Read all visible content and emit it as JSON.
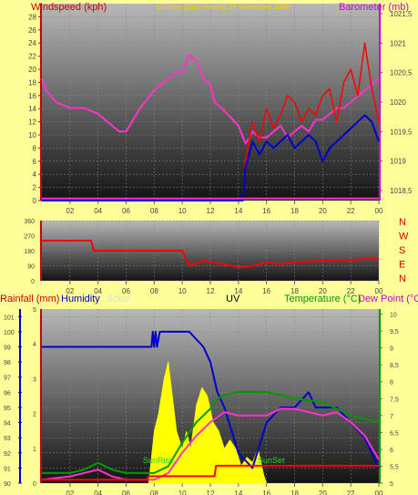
{
  "colors": {
    "background": "#ffff99",
    "red": "#ff0000",
    "blue": "#0000cc",
    "magenta": "#ff33cc",
    "green": "#009900",
    "yellow": "#ffff00",
    "plot_top": "#b8b8b8",
    "plot_bottom": "#141414"
  },
  "chart_data": [
    {
      "id": "wind_pressure",
      "type": "line",
      "title": "24 hour graph ending 27 November 2008",
      "ylabel_left": "Windspeed (kph)",
      "ylabel_right": "Barometer (mb)",
      "x_ticks": [
        "02",
        "04",
        "06",
        "08",
        "10",
        "12",
        "14",
        "16",
        "18",
        "20",
        "22",
        "00"
      ],
      "y_left_ticks": [
        0,
        2,
        4,
        6,
        8,
        10,
        12,
        14,
        16,
        18,
        20,
        22,
        24,
        26,
        28
      ],
      "y_left_range": [
        0,
        30
      ],
      "y_right_ticks": [
        "1018,5",
        "1019",
        "1019,5",
        "1020",
        "1020,5",
        "1021",
        "1021,5"
      ],
      "y_right_range": [
        1018.33,
        1021.67
      ],
      "grid": true,
      "series": [
        {
          "axis": "right",
          "color": "magenta",
          "x": [
            0,
            0.3,
            1,
            2,
            3,
            4,
            4.5,
            5,
            5.5,
            6,
            6.5,
            7,
            8,
            9,
            9.5,
            10,
            10.5,
            11,
            11.5,
            12,
            12.3,
            12.8,
            13.2,
            13.6,
            14,
            14.5,
            14.8,
            15,
            15.5,
            16,
            16.5,
            17,
            17.5,
            18,
            18.5,
            19,
            19.5,
            20,
            20.5,
            21,
            21.5,
            22,
            22.5,
            23,
            23.5,
            24
          ],
          "values": [
            1020.4,
            1020.2,
            1020.0,
            1019.9,
            1019.9,
            1019.8,
            1019.7,
            1019.6,
            1019.5,
            1019.5,
            1019.7,
            1019.9,
            1020.2,
            1020.4,
            1020.5,
            1020.5,
            1020.8,
            1020.7,
            1020.4,
            1020.3,
            1020.0,
            1019.9,
            1019.8,
            1019.7,
            1019.6,
            1019.3,
            1019.4,
            1019.5,
            1019.4,
            1019.4,
            1019.5,
            1019.6,
            1019.4,
            1019.5,
            1019.6,
            1019.5,
            1019.7,
            1019.7,
            1019.8,
            1019.9,
            1019.9,
            1020.0,
            1020.1,
            1020.2,
            1020.3,
            1020.4
          ]
        },
        {
          "axis": "left",
          "color": "red",
          "x": [
            0,
            14.3,
            14.5,
            15,
            15.5,
            16,
            16.5,
            17,
            17.5,
            18,
            18.5,
            19,
            19.5,
            20,
            20.5,
            21,
            21.5,
            22,
            22.5,
            23,
            23.5,
            24
          ],
          "values": [
            0,
            0,
            6,
            12,
            9,
            14,
            11,
            13,
            16,
            15,
            12,
            14,
            13,
            16,
            17,
            12,
            18,
            20,
            16,
            24,
            17,
            12
          ]
        },
        {
          "axis": "left",
          "color": "blue",
          "x": [
            0,
            14.3,
            14.5,
            15,
            15.5,
            16,
            16.5,
            17,
            17.5,
            18,
            18.5,
            19,
            19.5,
            20,
            20.5,
            21,
            21.5,
            22,
            22.5,
            23,
            23.5,
            24
          ],
          "values": [
            0,
            0,
            5,
            9,
            7,
            9,
            8,
            9,
            10,
            8,
            9,
            10,
            9,
            6,
            8,
            9,
            10,
            11,
            12,
            13,
            12,
            9
          ]
        },
        {
          "axis": "left",
          "color": "magenta",
          "x": [
            0,
            24
          ],
          "values": [
            0.3,
            0.3
          ]
        }
      ]
    },
    {
      "id": "wind_direction",
      "type": "line",
      "y_ticks": [
        0,
        90,
        180,
        270,
        360
      ],
      "y_range": [
        0,
        360
      ],
      "compass_labels": [
        "N",
        "W",
        "S",
        "E",
        "N"
      ],
      "series": [
        {
          "color": "red",
          "x": [
            0,
            3.5,
            3.7,
            5,
            7,
            10,
            10.1,
            10.5,
            11.5,
            12,
            13,
            14,
            15,
            16,
            17,
            18,
            20,
            22,
            23,
            24
          ],
          "values": [
            240,
            240,
            180,
            180,
            180,
            180,
            160,
            90,
            120,
            110,
            100,
            80,
            90,
            110,
            100,
            110,
            120,
            125,
            130,
            130
          ]
        }
      ]
    },
    {
      "id": "rain_hum_temp",
      "type": "line",
      "labels": {
        "rainfall": "Rainfall (mm)",
        "humidity": "Humidity",
        "solar": "Solar",
        "uv": "UV",
        "temperature": "Temperature (°C)",
        "dewpoint": "Dew Point (°C)",
        "sunrise": "SunRise",
        "sunset": "SunSet"
      },
      "x_ticks": [
        "02",
        "04",
        "06",
        "08",
        "10",
        "12",
        "14",
        "16",
        "18",
        "20",
        "22",
        "00"
      ],
      "rain_ticks": [
        0,
        1,
        2,
        3,
        4,
        5
      ],
      "rain_range": [
        0,
        5
      ],
      "humidity_ticks": [
        90,
        91,
        92,
        93,
        94,
        95,
        96,
        97,
        98,
        99,
        100,
        101
      ],
      "humidity_range": [
        90,
        101.5
      ],
      "temp_ticks": [
        "5",
        "5,5",
        "6",
        "6,5",
        "7",
        "7,5",
        "8",
        "8,5",
        "9",
        "9,5",
        "10"
      ],
      "temp_range": [
        5,
        10.15
      ],
      "series": [
        {
          "axis": "humidity",
          "color": "blue",
          "x": [
            0,
            7.8,
            7.9,
            8.0,
            8.1,
            8.2,
            8.4,
            8.5,
            10.5,
            11.5,
            12,
            12.5,
            13,
            14,
            15,
            16,
            17,
            18,
            19,
            19.5,
            20,
            21,
            22,
            23,
            23.5,
            24
          ],
          "values": [
            99,
            99,
            100,
            99,
            100,
            99,
            100,
            100,
            100,
            99,
            98,
            96,
            95,
            92,
            91,
            94,
            95,
            95,
            96,
            95,
            95,
            95,
            94,
            93,
            92,
            91
          ]
        },
        {
          "axis": "temp",
          "color": "green",
          "x": [
            0,
            2,
            3,
            4,
            5,
            6,
            7,
            8,
            9,
            10,
            11,
            12,
            12.5,
            13,
            14,
            16,
            18,
            20,
            22,
            24
          ],
          "values": [
            5.3,
            5.3,
            5.4,
            5.6,
            5.4,
            5.3,
            5.3,
            5.3,
            5.5,
            6.2,
            6.8,
            7.2,
            7.5,
            7.6,
            7.7,
            7.7,
            7.5,
            7.4,
            7.0,
            6.8
          ]
        },
        {
          "axis": "temp",
          "color": "magenta",
          "x": [
            0,
            2,
            4,
            5,
            6,
            7,
            8,
            9,
            10,
            11,
            12,
            13,
            14,
            16,
            17,
            18,
            20,
            21,
            22,
            23,
            24
          ],
          "values": [
            5.1,
            5.2,
            5.4,
            5.2,
            5.1,
            5.1,
            5.1,
            5.3,
            5.9,
            6.4,
            6.8,
            7.1,
            7.0,
            7.0,
            7.2,
            7.2,
            7.0,
            7.1,
            6.8,
            6.4,
            5.7
          ]
        },
        {
          "axis": "rain",
          "color": "red",
          "x": [
            0,
            7.5,
            7.6,
            12.3,
            12.4,
            24
          ],
          "values": [
            0.1,
            0.1,
            0.2,
            0.2,
            0.5,
            0.5
          ]
        }
      ],
      "solar_yellow": {
        "x": [
          7.6,
          8.0,
          8.3,
          8.7,
          9.0,
          9.3,
          9.6,
          10.0,
          10.3,
          10.6,
          11.0,
          11.4,
          11.8,
          12.2,
          12.6,
          13.0,
          13.4,
          13.8,
          14.2,
          14.6,
          15.0,
          15.4,
          15.8,
          16.0
        ],
        "values": [
          0,
          0.3,
          0.4,
          0.6,
          0.7,
          0.5,
          0.3,
          0.2,
          0.3,
          0.2,
          0.45,
          0.55,
          0.5,
          0.35,
          0.3,
          0.2,
          0.25,
          0.2,
          0.1,
          0.15,
          0.12,
          0.2,
          0.05,
          0
        ]
      }
    }
  ]
}
